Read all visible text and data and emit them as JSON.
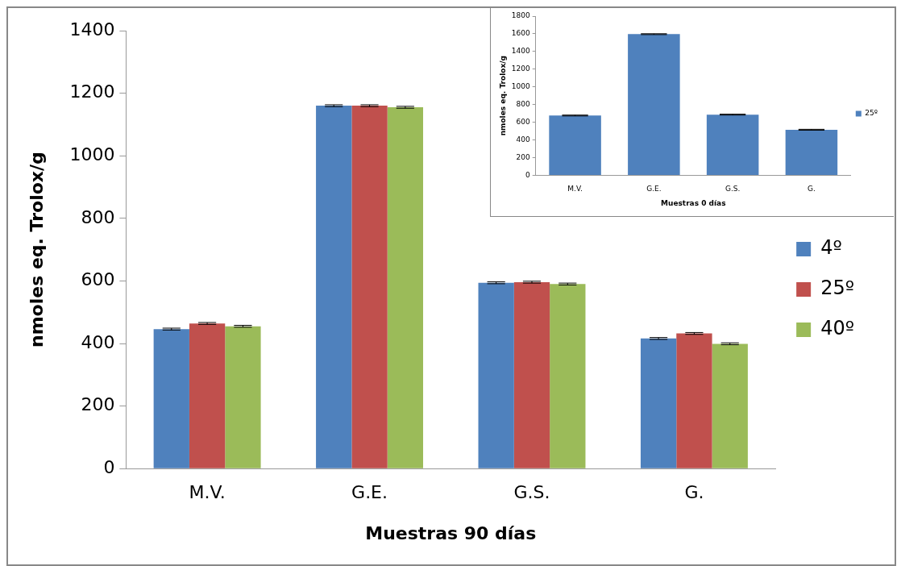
{
  "chart_data": [
    {
      "type": "bar",
      "xlabel": "Muestras 90 días",
      "ylabel": "nmoles eq. Trolox/g",
      "categories": [
        "M.V.",
        "G.E.",
        "G.S.",
        "G."
      ],
      "ylim": [
        0,
        1400
      ],
      "yticks": [
        0,
        200,
        400,
        600,
        800,
        1000,
        1200,
        1400
      ],
      "grid": false,
      "legend": "right",
      "series": [
        {
          "name": "4º",
          "color": "#4f81bd",
          "values": [
            446,
            1160,
            594,
            416
          ],
          "errors": [
            3,
            3,
            3,
            3
          ]
        },
        {
          "name": "25º",
          "color": "#c0504d",
          "values": [
            464,
            1160,
            596,
            432
          ],
          "errors": [
            3,
            3,
            3,
            3
          ]
        },
        {
          "name": "40º",
          "color": "#9bbb59",
          "values": [
            455,
            1155,
            590,
            399
          ],
          "errors": [
            3,
            3,
            3,
            3
          ]
        }
      ]
    },
    {
      "type": "bar",
      "xlabel": "Muestras 0 días",
      "ylabel": "nmoles eq. Trolox/g",
      "categories": [
        "M.V.",
        "G.E.",
        "G.S.",
        "G."
      ],
      "ylim": [
        0,
        1800
      ],
      "yticks": [
        0,
        200,
        400,
        600,
        800,
        1000,
        1200,
        1400,
        1600,
        1800
      ],
      "grid": false,
      "legend": "right",
      "series": [
        {
          "name": "25º",
          "color": "#4f81bd",
          "values": [
            676,
            1596,
            686,
            515
          ],
          "errors": [
            5,
            5,
            5,
            5
          ]
        }
      ]
    }
  ]
}
